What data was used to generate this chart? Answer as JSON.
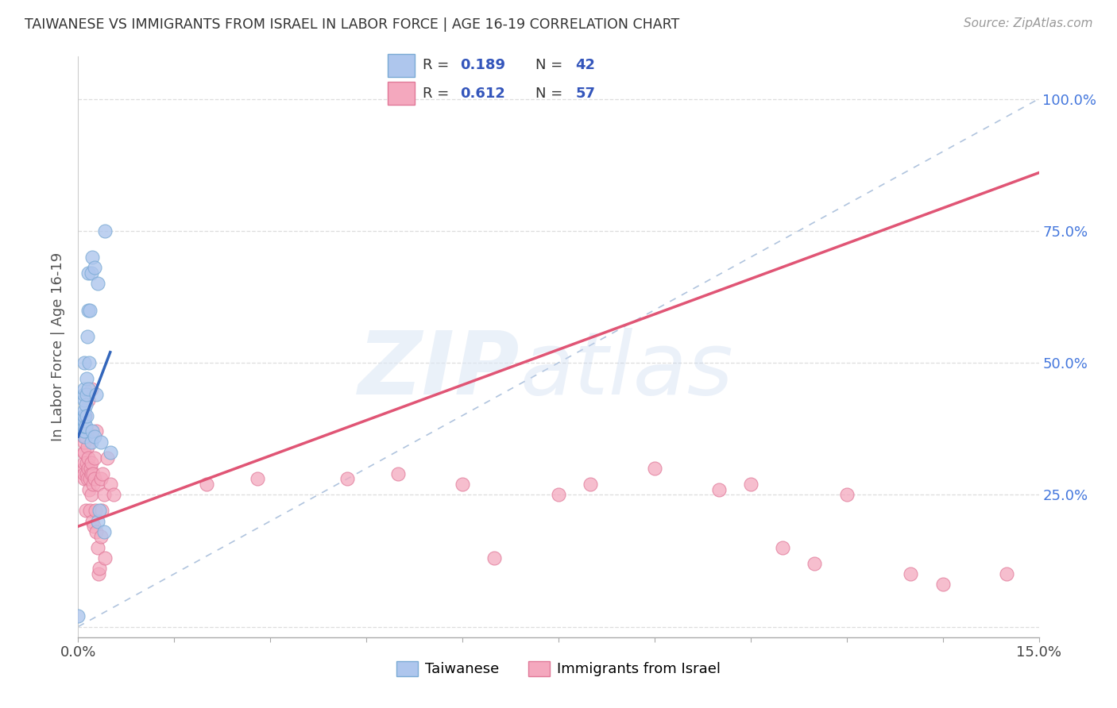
{
  "title": "TAIWANESE VS IMMIGRANTS FROM ISRAEL IN LABOR FORCE | AGE 16-19 CORRELATION CHART",
  "source": "Source: ZipAtlas.com",
  "ylabel": "In Labor Force | Age 16-19",
  "xlim": [
    0.0,
    0.15
  ],
  "ylim": [
    -0.02,
    1.08
  ],
  "xticks": [
    0.0,
    0.015,
    0.03,
    0.045,
    0.06,
    0.075,
    0.09,
    0.105,
    0.12,
    0.135,
    0.15
  ],
  "yticks": [
    0.0,
    0.25,
    0.5,
    0.75,
    1.0
  ],
  "background_color": "#ffffff",
  "grid_color": "#dddddd",
  "taiwanese_color": "#aec6ed",
  "israeli_color": "#f4a8be",
  "taiwanese_edge": "#7aaad4",
  "israeli_edge": "#e07898",
  "trend_blue": "#3366bb",
  "trend_pink": "#e05575",
  "diagonal_color": "#b0c4de",
  "legend_color": "#3355bb",
  "taiwanese_x": [
    0.0008,
    0.0008,
    0.0008,
    0.0009,
    0.0009,
    0.0009,
    0.001,
    0.001,
    0.001,
    0.001,
    0.001,
    0.001,
    0.001,
    0.001,
    0.001,
    0.001,
    0.0012,
    0.0012,
    0.0013,
    0.0013,
    0.0013,
    0.0014,
    0.0015,
    0.0015,
    0.0016,
    0.0017,
    0.0018,
    0.002,
    0.002,
    0.0022,
    0.0022,
    0.0025,
    0.0025,
    0.0028,
    0.003,
    0.003,
    0.0033,
    0.0035,
    0.004,
    0.0042,
    0.005,
    0.0
  ],
  "taiwanese_y": [
    0.38,
    0.39,
    0.4,
    0.37,
    0.38,
    0.4,
    0.36,
    0.37,
    0.38,
    0.39,
    0.4,
    0.41,
    0.43,
    0.44,
    0.45,
    0.5,
    0.38,
    0.42,
    0.4,
    0.44,
    0.47,
    0.55,
    0.45,
    0.6,
    0.67,
    0.5,
    0.6,
    0.35,
    0.67,
    0.37,
    0.7,
    0.36,
    0.68,
    0.44,
    0.2,
    0.65,
    0.22,
    0.35,
    0.18,
    0.75,
    0.33,
    0.02
  ],
  "israeli_x": [
    0.0008,
    0.0009,
    0.0009,
    0.001,
    0.001,
    0.001,
    0.001,
    0.001,
    0.001,
    0.0011,
    0.0012,
    0.0012,
    0.0013,
    0.0013,
    0.0013,
    0.0014,
    0.0014,
    0.0015,
    0.0015,
    0.0016,
    0.0017,
    0.0018,
    0.0018,
    0.0019,
    0.002,
    0.002,
    0.002,
    0.002,
    0.0022,
    0.0023,
    0.0023,
    0.0024,
    0.0025,
    0.0026,
    0.0027,
    0.0028,
    0.0028,
    0.003,
    0.003,
    0.0032,
    0.0033,
    0.0035,
    0.0035,
    0.0037,
    0.0038,
    0.004,
    0.0042,
    0.0045,
    0.005,
    0.0055,
    0.02,
    0.028,
    0.042,
    0.05,
    0.065,
    0.08,
    0.09,
    0.1,
    0.105,
    0.11,
    0.115,
    0.12,
    0.13,
    0.135,
    0.145,
    0.06,
    0.075
  ],
  "israeli_y": [
    0.36,
    0.3,
    0.33,
    0.28,
    0.29,
    0.31,
    0.33,
    0.35,
    0.38,
    0.4,
    0.22,
    0.36,
    0.29,
    0.31,
    0.37,
    0.28,
    0.34,
    0.3,
    0.43,
    0.32,
    0.26,
    0.22,
    0.28,
    0.3,
    0.25,
    0.29,
    0.31,
    0.45,
    0.2,
    0.27,
    0.29,
    0.19,
    0.28,
    0.32,
    0.22,
    0.18,
    0.37,
    0.15,
    0.27,
    0.1,
    0.11,
    0.17,
    0.28,
    0.22,
    0.29,
    0.25,
    0.13,
    0.32,
    0.27,
    0.25,
    0.27,
    0.28,
    0.28,
    0.29,
    0.13,
    0.27,
    0.3,
    0.26,
    0.27,
    0.15,
    0.12,
    0.25,
    0.1,
    0.08,
    0.1,
    0.27,
    0.25
  ],
  "pink_trend_x0": 0.0,
  "pink_trend_y0": 0.19,
  "pink_trend_x1": 0.15,
  "pink_trend_y1": 0.86,
  "blue_trend_x0": 0.0,
  "blue_trend_y0": 0.36,
  "blue_trend_x1": 0.005,
  "blue_trend_y1": 0.52
}
